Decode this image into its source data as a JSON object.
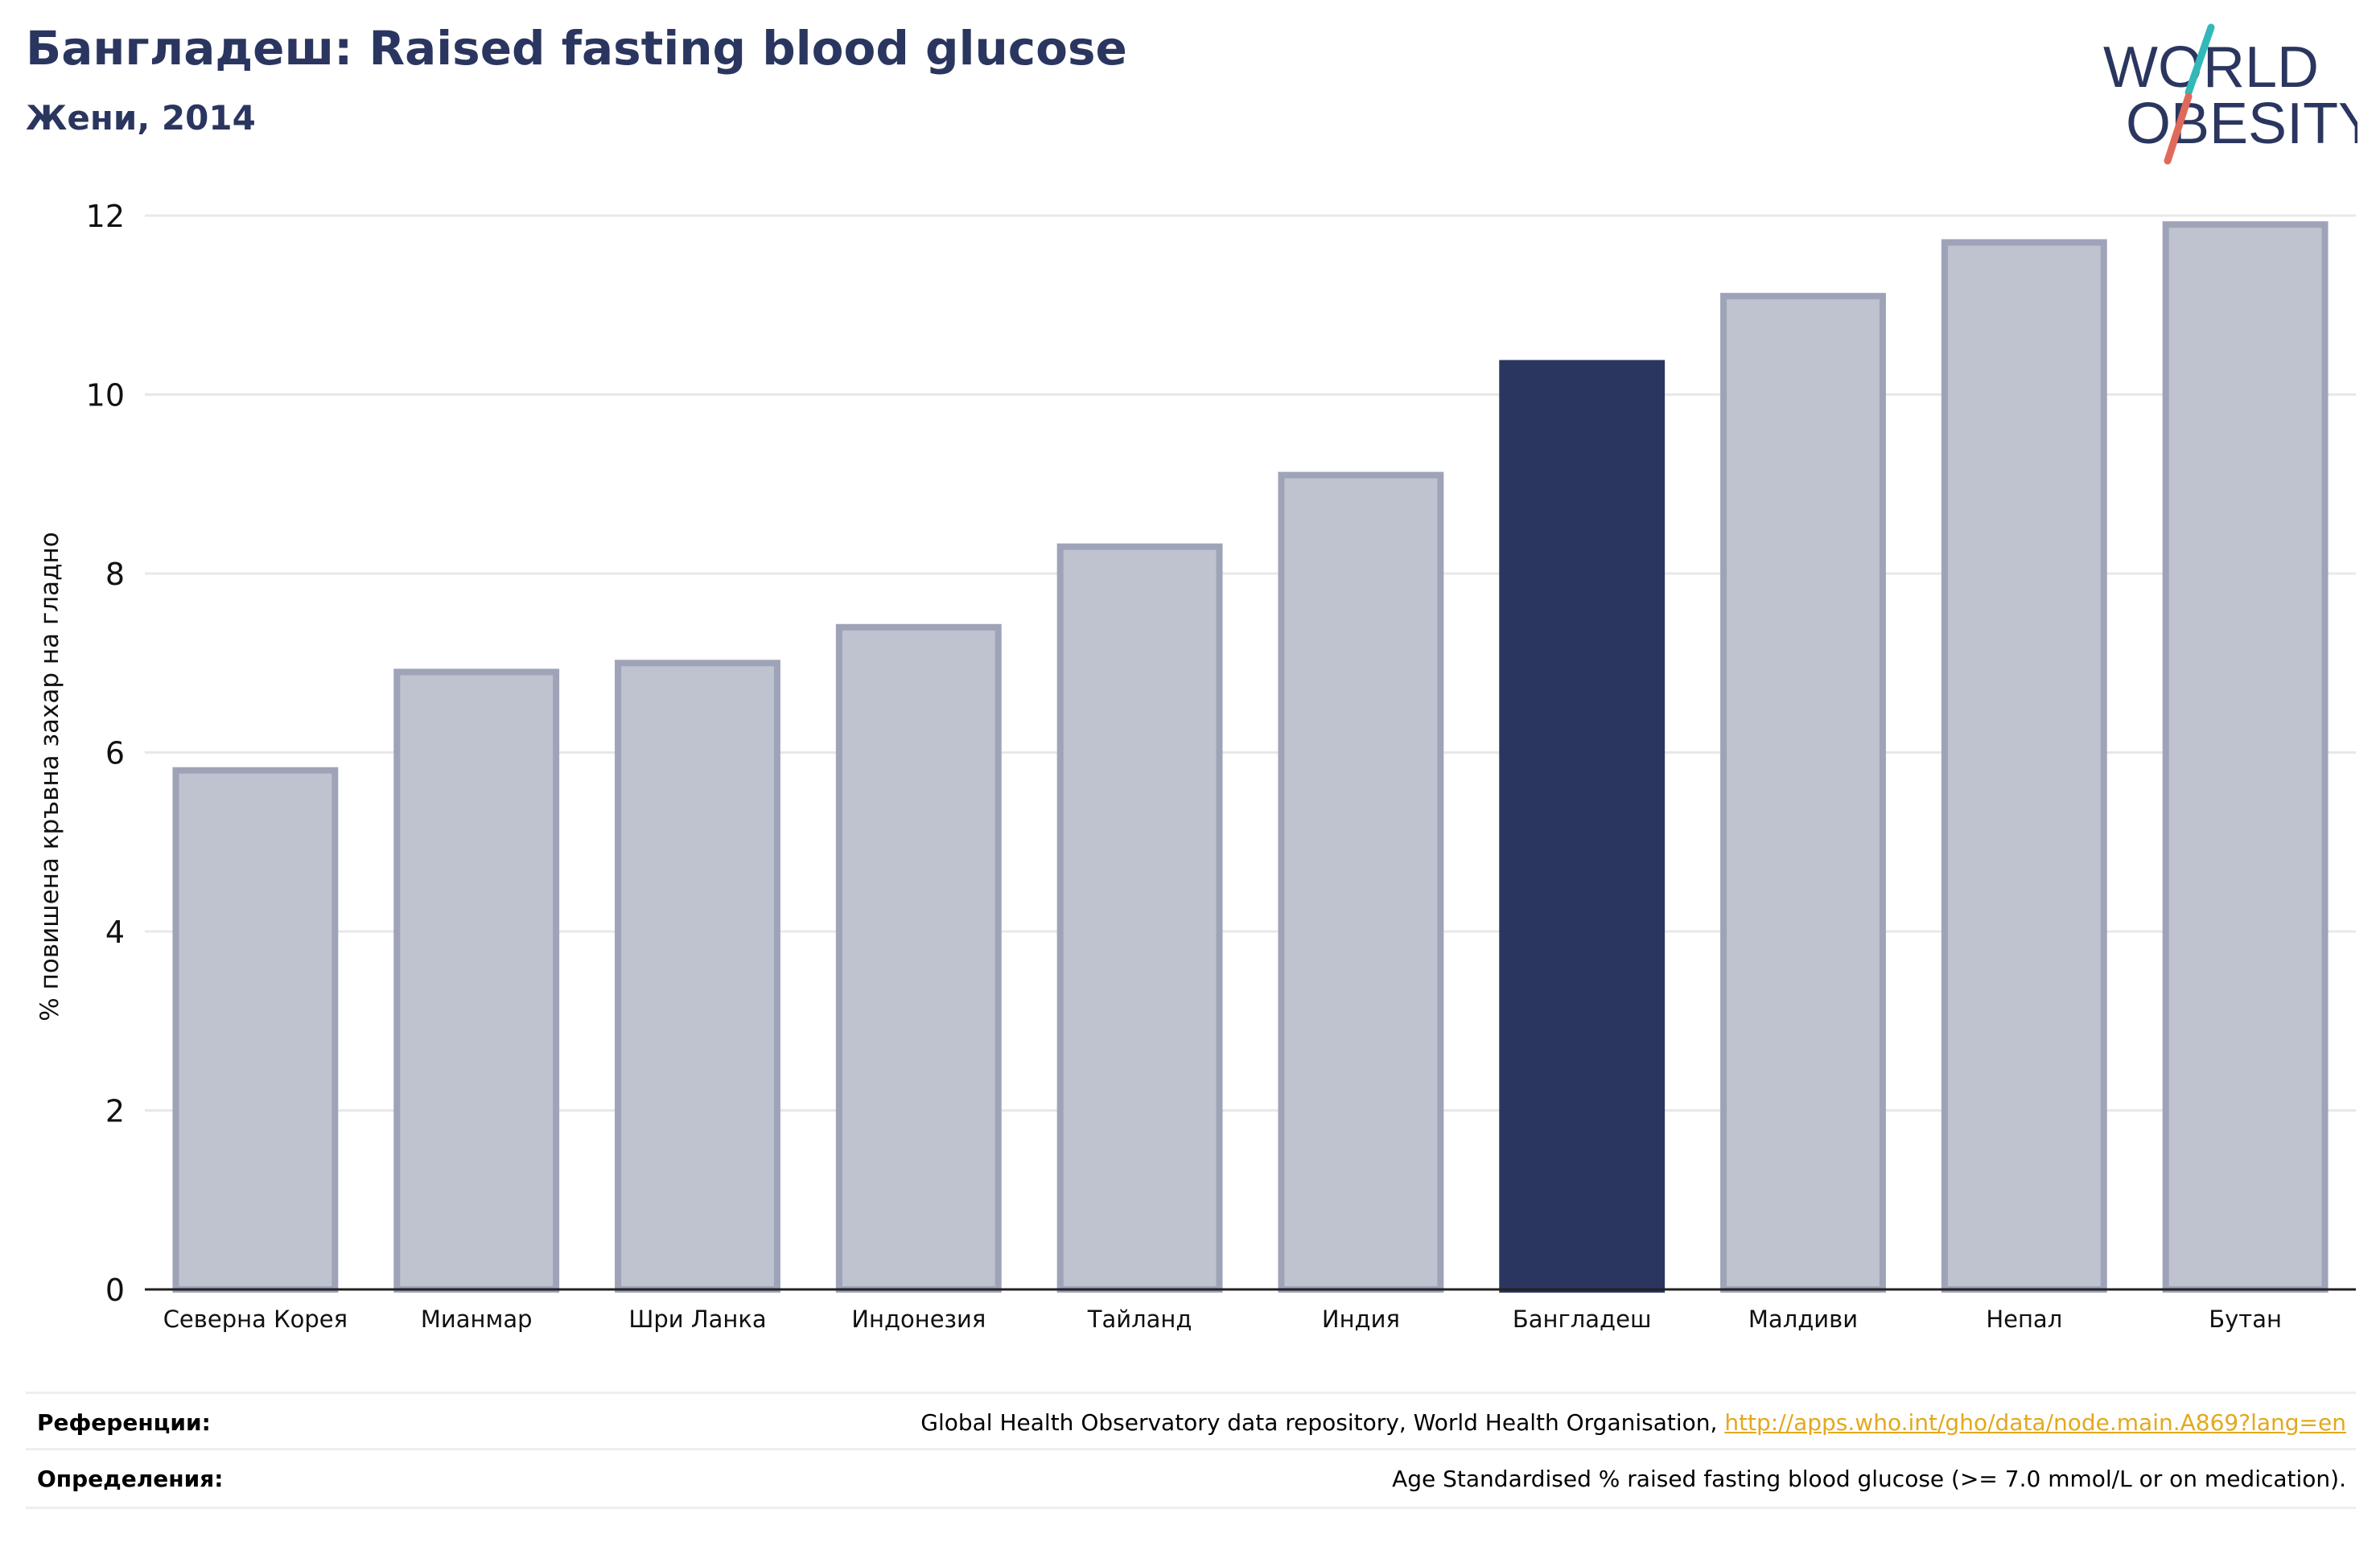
{
  "header": {
    "title": "Бангладеш: Raised fasting blood glucose",
    "subtitle": "Жени, 2014"
  },
  "logo": {
    "line1": "WORLD",
    "line2": "OBESITY",
    "colors": {
      "text": "#2a365f",
      "slash_teal": "#33b8b8",
      "slash_red": "#e06a5a"
    }
  },
  "colors": {
    "bar_default": "#bfc2cf",
    "bar_default_border": "#9ea3b8",
    "bar_highlight": "#2a365f",
    "grid": "#e8e8e8",
    "axis": "#222222",
    "link": "#e3a81c"
  },
  "chart_data": {
    "type": "bar",
    "title": "Бангладеш: Raised fasting blood glucose",
    "subtitle": "Жени, 2014",
    "xlabel": "",
    "ylabel": "% повишена кръвна захар на гладно",
    "ylim": [
      0,
      12
    ],
    "yticks": [
      "0",
      "2",
      "4",
      "6",
      "8",
      "10",
      "12"
    ],
    "grid": true,
    "highlight": "Бангладеш",
    "categories": [
      "Северна Корея",
      "Мианмар",
      "Шри Ланка",
      "Индонезия",
      "Тайланд",
      "Индия",
      "Бангладеш",
      "Малдиви",
      "Непал",
      "Бутан"
    ],
    "values": [
      5.8,
      6.9,
      7.0,
      7.4,
      8.3,
      9.1,
      10.35,
      11.1,
      11.7,
      11.9
    ]
  },
  "footer": {
    "references_label": "Референции:",
    "references_text": "Global Health Observatory data repository, World Health Organisation, ",
    "references_link": "http://apps.who.int/gho/data/node.main.A869?lang=en",
    "definitions_label": "Определения:",
    "definitions_text": "Age Standardised % raised fasting blood glucose (>= 7.0 mmol/L or on medication)."
  }
}
